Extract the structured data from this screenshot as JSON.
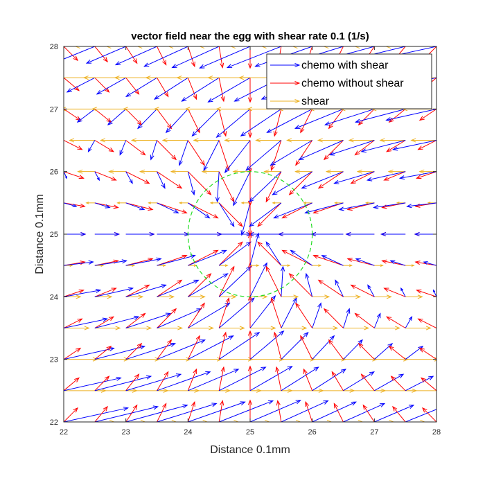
{
  "chart_data": {
    "type": "quiver",
    "title": "vector field near the egg with shear rate 0.1 (1/s)",
    "xlabel": "Distance 0.1mm",
    "ylabel": "Distance 0.1mm",
    "xlim": [
      22,
      28
    ],
    "ylim": [
      22,
      28
    ],
    "xticks": [
      "22",
      "23",
      "24",
      "25",
      "26",
      "27",
      "28"
    ],
    "yticks": [
      "22",
      "23",
      "24",
      "25",
      "26",
      "27",
      "28"
    ],
    "grid_spacing": 0.5,
    "legend": {
      "location": "top-right",
      "entries": [
        {
          "label": "chemo with shear",
          "color": "#0000ff"
        },
        {
          "label": "chemo without shear",
          "color": "#ff0000"
        },
        {
          "label": "shear",
          "color": "#edb120"
        }
      ]
    },
    "egg": {
      "center": [
        25,
        25
      ],
      "radius": 1,
      "color": "#22dd22",
      "style": "dashed"
    },
    "shear_rate": 0.1,
    "shear_wall_y": 25,
    "vector_scale": 0.9
  }
}
